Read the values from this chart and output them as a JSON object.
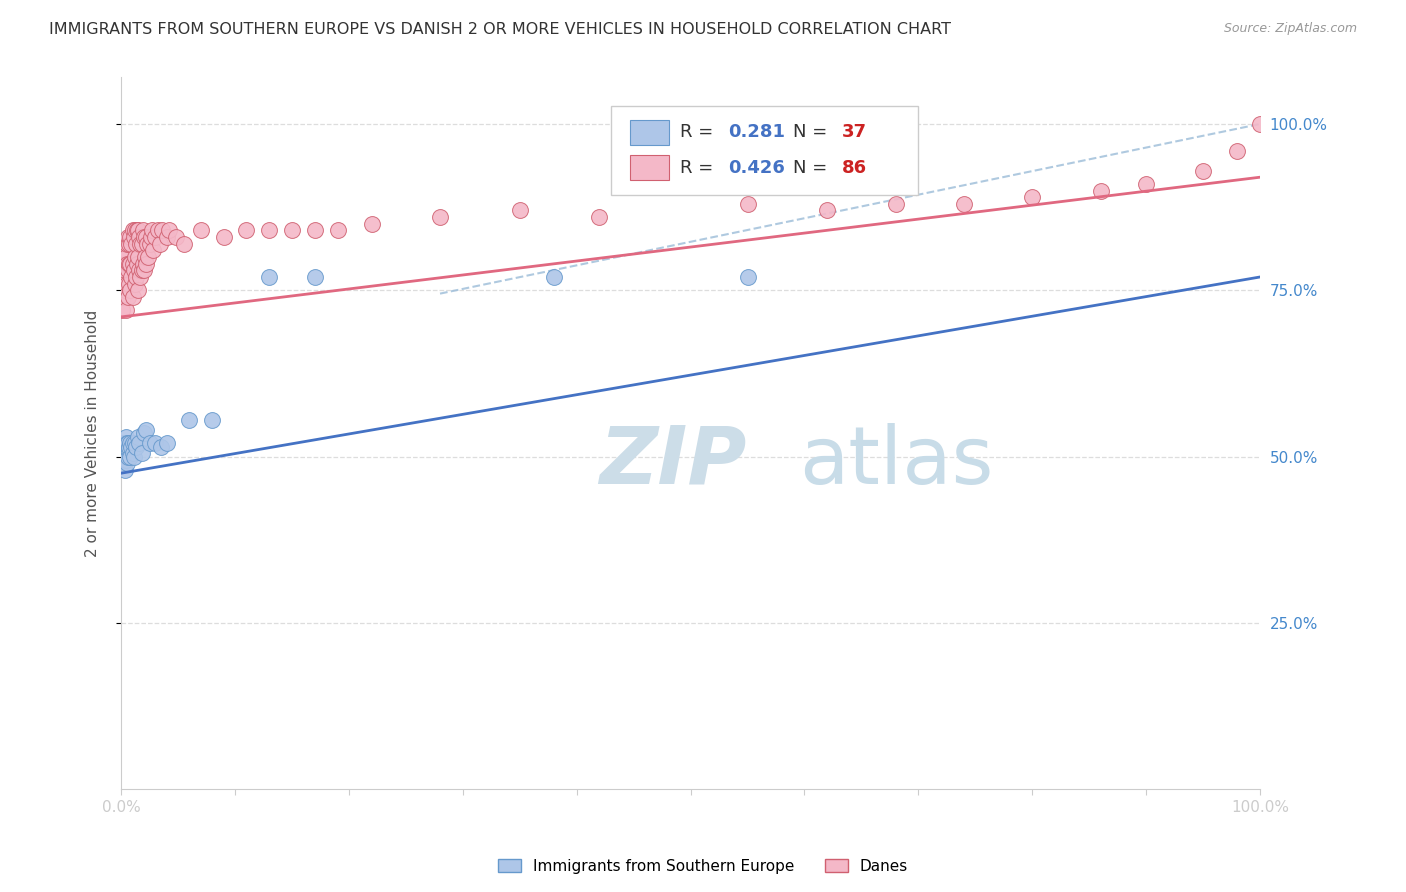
{
  "title": "IMMIGRANTS FROM SOUTHERN EUROPE VS DANISH 2 OR MORE VEHICLES IN HOUSEHOLD CORRELATION CHART",
  "source": "Source: ZipAtlas.com",
  "ylabel": "2 or more Vehicles in Household",
  "ytick_labels": [
    "100.0%",
    "75.0%",
    "50.0%",
    "25.0%"
  ],
  "ytick_vals": [
    1.0,
    0.75,
    0.5,
    0.25
  ],
  "legend_blue_label": "Immigrants from Southern Europe",
  "legend_pink_label": "Danes",
  "r_blue": 0.281,
  "n_blue": 37,
  "r_pink": 0.426,
  "n_pink": 86,
  "blue_scatter_x": [
    0.001,
    0.002,
    0.002,
    0.003,
    0.003,
    0.004,
    0.004,
    0.004,
    0.005,
    0.005,
    0.006,
    0.006,
    0.007,
    0.007,
    0.008,
    0.008,
    0.009,
    0.01,
    0.01,
    0.011,
    0.012,
    0.013,
    0.015,
    0.016,
    0.018,
    0.02,
    0.022,
    0.025,
    0.03,
    0.035,
    0.04,
    0.06,
    0.08,
    0.13,
    0.17,
    0.38,
    0.55
  ],
  "blue_scatter_y": [
    0.49,
    0.5,
    0.52,
    0.48,
    0.51,
    0.5,
    0.53,
    0.495,
    0.52,
    0.49,
    0.5,
    0.52,
    0.51,
    0.515,
    0.5,
    0.52,
    0.515,
    0.505,
    0.52,
    0.5,
    0.52,
    0.515,
    0.53,
    0.52,
    0.505,
    0.535,
    0.54,
    0.52,
    0.52,
    0.515,
    0.52,
    0.555,
    0.555,
    0.77,
    0.77,
    0.77,
    0.77
  ],
  "pink_scatter_x": [
    0.001,
    0.001,
    0.002,
    0.002,
    0.003,
    0.003,
    0.003,
    0.004,
    0.004,
    0.005,
    0.005,
    0.005,
    0.006,
    0.006,
    0.006,
    0.007,
    0.007,
    0.007,
    0.008,
    0.008,
    0.008,
    0.009,
    0.009,
    0.01,
    0.01,
    0.01,
    0.011,
    0.011,
    0.012,
    0.012,
    0.012,
    0.013,
    0.013,
    0.014,
    0.014,
    0.015,
    0.015,
    0.015,
    0.016,
    0.016,
    0.017,
    0.017,
    0.018,
    0.018,
    0.019,
    0.019,
    0.02,
    0.02,
    0.021,
    0.022,
    0.022,
    0.023,
    0.024,
    0.025,
    0.026,
    0.027,
    0.028,
    0.03,
    0.032,
    0.034,
    0.036,
    0.04,
    0.042,
    0.048,
    0.055,
    0.07,
    0.09,
    0.11,
    0.13,
    0.15,
    0.17,
    0.19,
    0.22,
    0.28,
    0.35,
    0.42,
    0.55,
    0.62,
    0.68,
    0.74,
    0.8,
    0.86,
    0.9,
    0.95,
    0.98,
    1.0
  ],
  "pink_scatter_y": [
    0.72,
    0.77,
    0.74,
    0.79,
    0.75,
    0.78,
    0.81,
    0.72,
    0.8,
    0.76,
    0.79,
    0.82,
    0.74,
    0.78,
    0.83,
    0.76,
    0.79,
    0.82,
    0.75,
    0.79,
    0.83,
    0.77,
    0.82,
    0.74,
    0.79,
    0.84,
    0.78,
    0.83,
    0.76,
    0.8,
    0.84,
    0.77,
    0.82,
    0.79,
    0.84,
    0.75,
    0.8,
    0.84,
    0.78,
    0.83,
    0.77,
    0.82,
    0.78,
    0.82,
    0.79,
    0.84,
    0.78,
    0.83,
    0.8,
    0.79,
    0.83,
    0.82,
    0.8,
    0.82,
    0.83,
    0.84,
    0.81,
    0.83,
    0.84,
    0.82,
    0.84,
    0.83,
    0.84,
    0.83,
    0.82,
    0.84,
    0.83,
    0.84,
    0.84,
    0.84,
    0.84,
    0.84,
    0.85,
    0.86,
    0.87,
    0.86,
    0.88,
    0.87,
    0.88,
    0.88,
    0.89,
    0.9,
    0.91,
    0.93,
    0.96,
    1.0
  ],
  "blue_color": "#aec6e8",
  "blue_line_color": "#4472c4",
  "blue_edge_color": "#6699cc",
  "pink_color": "#f4b8c8",
  "pink_line_color": "#e06880",
  "pink_edge_color": "#d06070",
  "dash_line_color": "#9bbcd8",
  "watermark_zip_color": "#ccdde8",
  "watermark_atlas_color": "#c8dce8",
  "background_color": "#ffffff",
  "grid_color": "#dddddd",
  "axis_color": "#cccccc",
  "tick_label_color": "#4488cc",
  "title_color": "#333333",
  "source_color": "#999999",
  "ylabel_color": "#555555",
  "legend_text_color": "#333333",
  "legend_r_color": "#4472c4",
  "legend_n_color": "#cc2222"
}
